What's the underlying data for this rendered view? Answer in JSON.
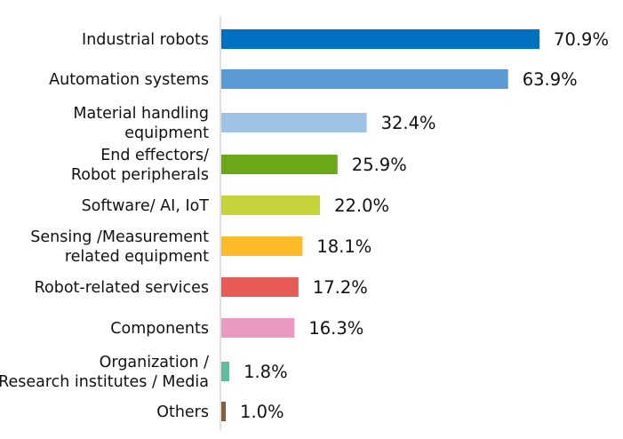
{
  "chart_data": {
    "type": "bar",
    "orientation": "horizontal",
    "categories": [
      [
        "Industrial robots"
      ],
      [
        "Automation systems"
      ],
      [
        "Material handling",
        "equipment"
      ],
      [
        "End effectors/",
        "Robot peripherals"
      ],
      [
        "Software/ AI, IoT"
      ],
      [
        "Sensing /Measurement",
        "related equipment"
      ],
      [
        "Robot-related services"
      ],
      [
        "Components"
      ],
      [
        "Organization /",
        "Research institutes / Media"
      ],
      [
        "Others"
      ]
    ],
    "values": [
      70.9,
      63.9,
      32.4,
      25.9,
      22.0,
      18.1,
      17.2,
      16.3,
      1.8,
      1.0
    ],
    "value_labels": [
      "70.9%",
      "63.9%",
      "32.4%",
      "25.9%",
      "22.0%",
      "18.1%",
      "17.2%",
      "16.3%",
      "1.8%",
      "1.0%"
    ],
    "colors": [
      "#0070c0",
      "#5b9bd5",
      "#9dc3e6",
      "#6aa81a",
      "#c6d23a",
      "#fdbb2a",
      "#e85a54",
      "#ea9ac0",
      "#5cbf9b",
      "#8a5a3a"
    ],
    "xlim": [
      0,
      80
    ],
    "grid": false,
    "legend": "none"
  }
}
